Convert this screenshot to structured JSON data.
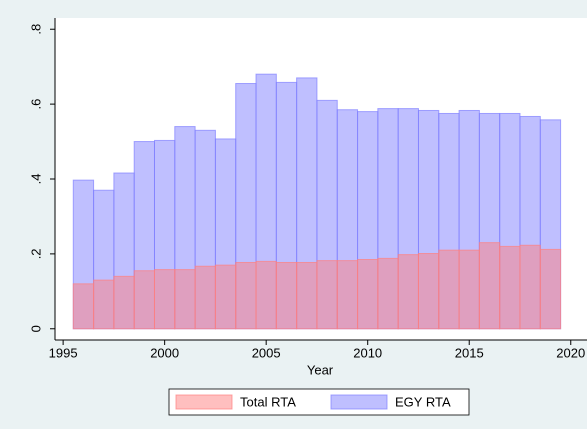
{
  "chart_data": {
    "type": "overlaid_bar",
    "x_label": "Year",
    "x": [
      1996,
      1997,
      1998,
      1999,
      2000,
      2001,
      2002,
      2003,
      2004,
      2005,
      2006,
      2007,
      2008,
      2009,
      2010,
      2011,
      2012,
      2013,
      2014,
      2015,
      2016,
      2017,
      2018,
      2019
    ],
    "series": [
      {
        "name": "Total RTA",
        "color": "#ff8080",
        "values": [
          0.12,
          0.13,
          0.14,
          0.155,
          0.158,
          0.158,
          0.167,
          0.17,
          0.177,
          0.18,
          0.177,
          0.177,
          0.182,
          0.182,
          0.185,
          0.188,
          0.198,
          0.201,
          0.21,
          0.21,
          0.23,
          0.22,
          0.223,
          0.212
        ]
      },
      {
        "name": "EGY RTA",
        "color": "#8080ff",
        "values": [
          0.397,
          0.37,
          0.416,
          0.5,
          0.503,
          0.54,
          0.53,
          0.507,
          0.655,
          0.68,
          0.658,
          0.67,
          0.61,
          0.585,
          0.58,
          0.588,
          0.588,
          0.583,
          0.575,
          0.583,
          0.575,
          0.575,
          0.567,
          0.558
        ]
      }
    ],
    "xlim": [
      1994.6,
      2020.8
    ],
    "xticks": [
      1995,
      2000,
      2005,
      2010,
      2015,
      2020
    ],
    "ylim": [
      -0.03,
      0.83
    ],
    "yticks": [
      0,
      {
        "value": 0.2,
        "label": ".2"
      },
      {
        "value": 0.4,
        "label": ".4"
      },
      {
        "value": 0.6,
        "label": ".6"
      },
      {
        "value": 0.8,
        "label": ".8"
      }
    ],
    "legend": "bottom"
  }
}
